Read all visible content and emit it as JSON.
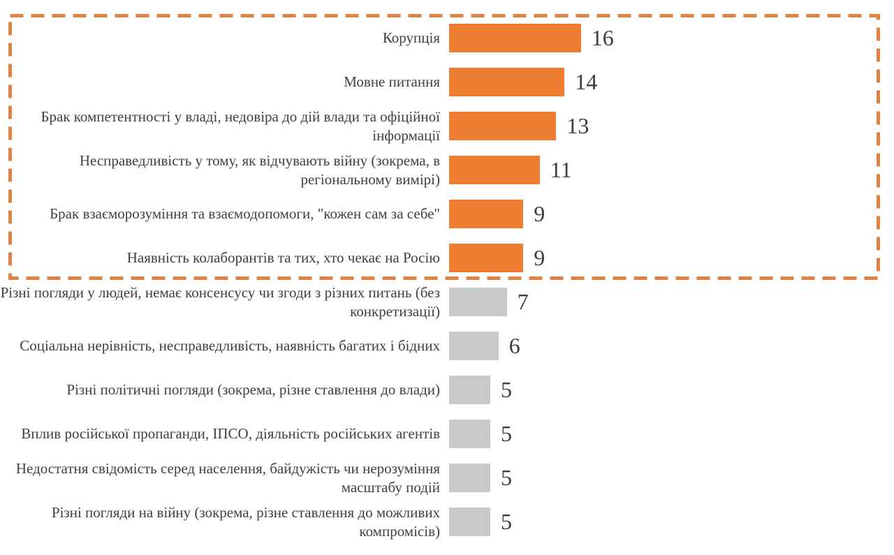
{
  "chart_data": {
    "type": "bar",
    "orientation": "horizontal",
    "value_range": [
      0,
      16
    ],
    "grid": false,
    "legend": false,
    "rows": [
      {
        "label": "Корупція",
        "value": 16,
        "group": "highlighted"
      },
      {
        "label": "Мовне питання",
        "value": 14,
        "group": "highlighted"
      },
      {
        "label": "Брак компетентності у владі, недовіра до дій влади та офіційної інформації",
        "value": 13,
        "group": "highlighted"
      },
      {
        "label": "Несправедливість у тому, як відчувають війну (зокрема, в регіональному вимірі)",
        "value": 11,
        "group": "highlighted"
      },
      {
        "label": "Брак взаєморозуміння та взаємодопомоги, \"кожен сам за себе\"",
        "value": 9,
        "group": "highlighted"
      },
      {
        "label": "Наявність колаборантів та тих, хто чекає на Росію",
        "value": 9,
        "group": "highlighted"
      },
      {
        "label": "Різні погляди у людей, немає консенсусу чи згоди з різних питань (без конкретизації)",
        "value": 7,
        "group": "other"
      },
      {
        "label": "Соціальна нерівність, несправедливість, наявність багатих і бідних",
        "value": 6,
        "group": "other"
      },
      {
        "label": "Різні політичні погляди (зокрема, різне ставлення до влади)",
        "value": 5,
        "group": "other"
      },
      {
        "label": "Вплив російської пропаганди, ІПСО, діяльність російських агентів",
        "value": 5,
        "group": "other"
      },
      {
        "label": "Недостатня свідомість серед населення,  байдужість чи нерозуміння масштабу подій",
        "value": 5,
        "group": "other"
      },
      {
        "label": "Різні погляди на війну (зокрема, різне ставлення до можливих компромісів)",
        "value": 5,
        "group": "other"
      }
    ],
    "colors": {
      "highlighted_bar": "#ED7D31",
      "other_bar": "#C9C9C9",
      "highlight_border": "#DF8344",
      "label_text": "#404040",
      "value_text": "#3D3D3D"
    },
    "highlight_box": {
      "style": "dashed",
      "encloses_row_indices": [
        0,
        1,
        2,
        3,
        4,
        5
      ]
    }
  }
}
